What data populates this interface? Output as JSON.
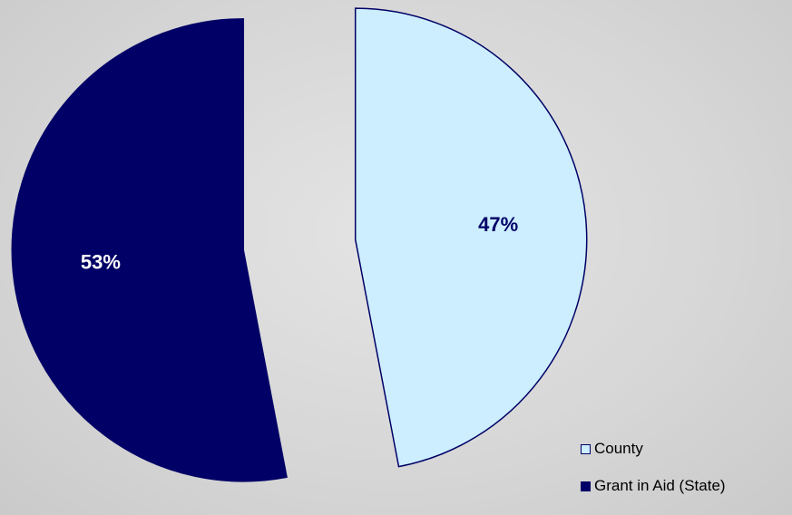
{
  "chart_data": {
    "type": "pie",
    "title": "",
    "exploded": true,
    "slices": [
      {
        "label": "County",
        "value": 47,
        "display": "47%",
        "color": "#cceeff",
        "edge": "#000066",
        "text_color": "#000066"
      },
      {
        "label": "Grant in Aid (State)",
        "value": 53,
        "display": "53%",
        "color": "#000066",
        "edge": "#000066",
        "text_color": "#ffffff"
      }
    ],
    "legend": {
      "placement": "bottom-right"
    }
  },
  "legend": {
    "items": [
      {
        "label": "County",
        "color": "#cceeff"
      },
      {
        "label": "Grant in Aid (State)",
        "color": "#000066"
      }
    ]
  }
}
